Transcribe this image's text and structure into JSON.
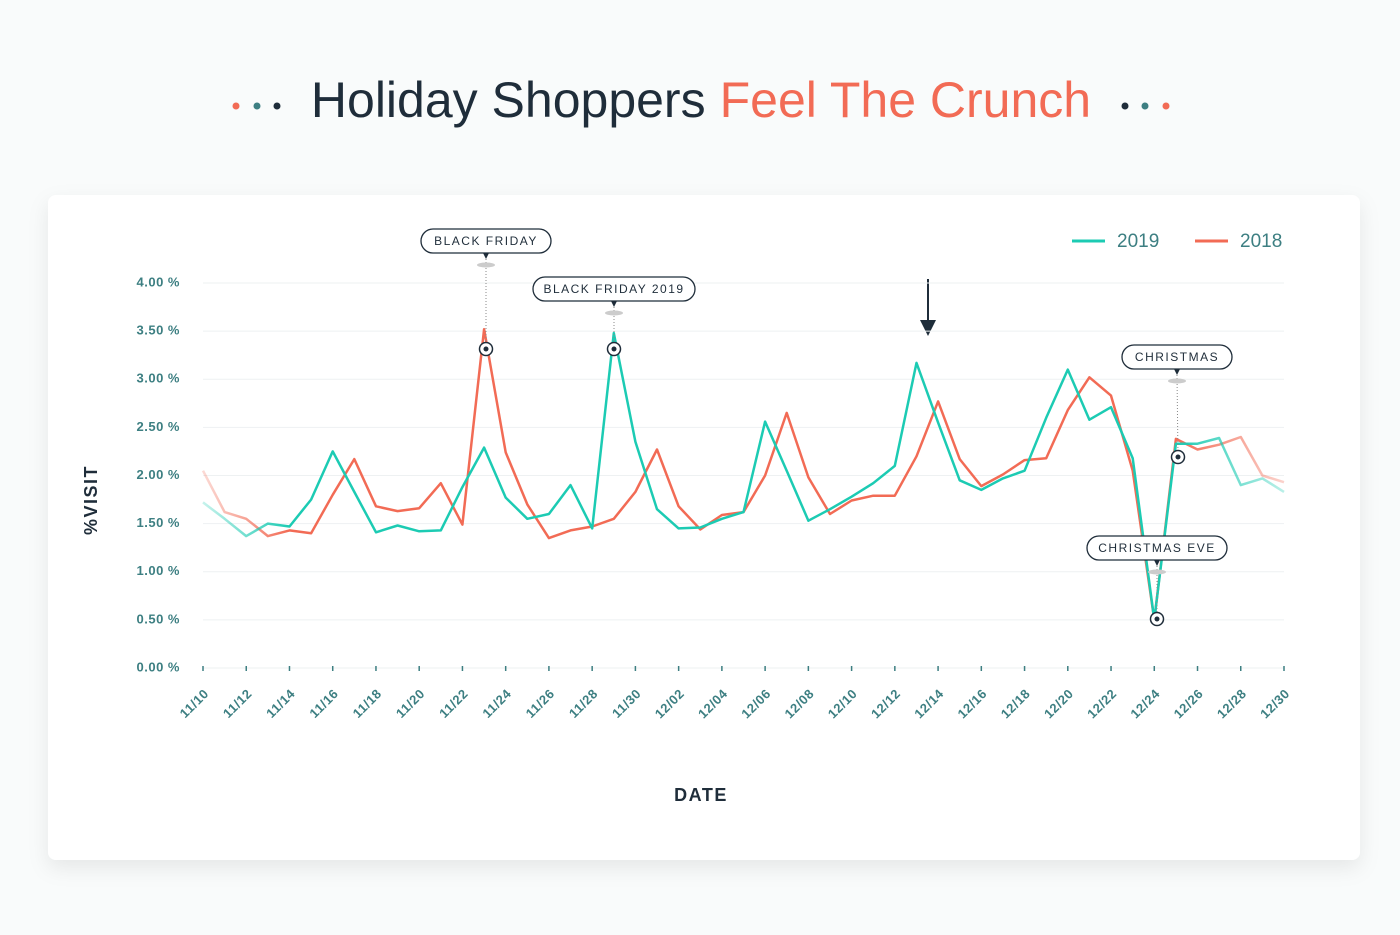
{
  "chart_data": {
    "type": "line",
    "title": {
      "main": "Holiday Shoppers",
      "highlight": "Feel The Crunch"
    },
    "xlabel": "DATE",
    "ylabel": "%VISIT",
    "categories": [
      "11/10",
      null,
      "11/12",
      null,
      "11/14",
      null,
      "11/16",
      null,
      "11/18",
      null,
      "11/20",
      null,
      "11/22",
      null,
      "11/24",
      null,
      "11/26",
      null,
      "11/28",
      null,
      "11/30",
      null,
      "12/02",
      null,
      "12/04",
      null,
      "12/06",
      null,
      "12/08",
      null,
      "12/10",
      null,
      "12/12",
      null,
      "12/14",
      null,
      "12/16",
      null,
      "12/18",
      null,
      "12/20",
      null,
      "12/22",
      null,
      "12/24",
      null,
      "12/26",
      null,
      "12/28",
      null,
      "12/30"
    ],
    "series": [
      {
        "name": "2019",
        "color": "#1ccbb3",
        "values": [
          1.72,
          1.55,
          1.37,
          1.5,
          1.47,
          1.75,
          2.25,
          1.83,
          1.41,
          1.48,
          1.42,
          1.43,
          1.88,
          2.29,
          1.77,
          1.55,
          1.6,
          1.9,
          1.45,
          3.48,
          2.35,
          1.65,
          1.45,
          1.46,
          1.55,
          1.62,
          2.56,
          2.05,
          1.53,
          1.65,
          1.78,
          1.92,
          2.1,
          3.17,
          2.55,
          1.95,
          1.85,
          1.97,
          2.05,
          2.6,
          3.1,
          2.58,
          2.71,
          2.18,
          0.5,
          2.33,
          2.33,
          2.39,
          1.9,
          1.97,
          1.83
        ]
      },
      {
        "name": "2018",
        "color": "#f26b55",
        "values": [
          2.05,
          1.62,
          1.55,
          1.37,
          1.43,
          1.4,
          1.8,
          2.17,
          1.68,
          1.63,
          1.66,
          1.92,
          1.49,
          3.52,
          2.24,
          1.7,
          1.35,
          1.43,
          1.47,
          1.55,
          1.83,
          2.27,
          1.68,
          1.44,
          1.59,
          1.62,
          2.0,
          2.65,
          1.98,
          1.6,
          1.74,
          1.79,
          1.79,
          2.2,
          2.77,
          2.17,
          1.89,
          2.01,
          2.16,
          2.18,
          2.68,
          3.02,
          2.83,
          2.05,
          0.5,
          2.38,
          2.27,
          2.32,
          2.4,
          2.0,
          1.93
        ]
      }
    ],
    "ylim": [
      0,
      4
    ],
    "yticks": [
      {
        "value": 0,
        "label": "0.00 %"
      },
      {
        "value": 0.5,
        "label": "0.50 %"
      },
      {
        "value": 1,
        "label": "1.00 %"
      },
      {
        "value": 1.5,
        "label": "1.50 %"
      },
      {
        "value": 2,
        "label": "2.00 %"
      },
      {
        "value": 2.5,
        "label": "2.50 %"
      },
      {
        "value": 3,
        "label": "3.00 %"
      },
      {
        "value": 3.5,
        "label": "3.50 %"
      },
      {
        "value": 4,
        "label": "4.00 %"
      }
    ],
    "grid": true,
    "legend": "top-right",
    "annotations": [
      "BLACK FRIDAY",
      "BLACK FRIDAY 2019",
      "CHRISTMAS",
      "CHRISTMAS EVE"
    ]
  }
}
